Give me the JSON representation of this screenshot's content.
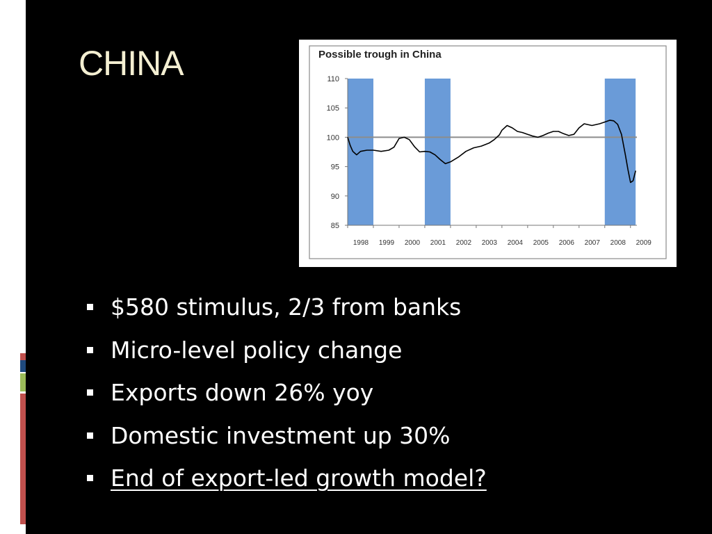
{
  "slide": {
    "title": "CHINA",
    "accent_colors": [
      "#c0504d",
      "#1f497d",
      "#9bbb59",
      "#c0504d"
    ],
    "bullets": [
      {
        "text": "$580 stimulus, 2/3 from banks",
        "underlined": false
      },
      {
        "text": "Micro-level policy change",
        "underlined": false
      },
      {
        "text": "Exports down 26% yoy",
        "underlined": false
      },
      {
        "text": "Domestic investment up 30%",
        "underlined": false
      },
      {
        "text": "End of export-led growth model?",
        "underlined": true
      }
    ]
  },
  "chart_data": {
    "type": "line",
    "title": "Possible trough in China",
    "ylim": [
      85,
      110
    ],
    "yticks": [
      110,
      105,
      100,
      95,
      90,
      85
    ],
    "xticks": [
      "1998",
      "1999",
      "2000",
      "2001",
      "2002",
      "2003",
      "2004",
      "2005",
      "2006",
      "2007",
      "2008",
      "2009"
    ],
    "reference_line": 100,
    "shaded_periods": [
      [
        1998.0,
        1999.0
      ],
      [
        2001.0,
        2002.0
      ],
      [
        2008.0,
        2009.2
      ]
    ],
    "x": [
      1998.0,
      1998.1,
      1998.2,
      1998.35,
      1998.5,
      1998.75,
      1999.0,
      1999.3,
      1999.6,
      1999.8,
      2000.0,
      2000.2,
      2000.4,
      2000.6,
      2000.8,
      2001.0,
      2001.2,
      2001.4,
      2001.6,
      2001.8,
      2002.0,
      2002.3,
      2002.6,
      2002.9,
      2003.2,
      2003.5,
      2003.7,
      2003.9,
      2004.0,
      2004.2,
      2004.4,
      2004.6,
      2004.8,
      2005.0,
      2005.2,
      2005.4,
      2005.6,
      2005.8,
      2006.0,
      2006.2,
      2006.4,
      2006.6,
      2006.8,
      2007.0,
      2007.2,
      2007.5,
      2007.8,
      2008.0,
      2008.2,
      2008.35,
      2008.5,
      2008.65,
      2008.8,
      2008.9,
      2009.0,
      2009.1,
      2009.2
    ],
    "values": [
      100.0,
      98.6,
      97.6,
      97.0,
      97.6,
      97.8,
      97.8,
      97.6,
      97.8,
      98.3,
      99.8,
      100.0,
      99.6,
      98.4,
      97.5,
      97.6,
      97.5,
      97.0,
      96.2,
      95.5,
      95.8,
      96.6,
      97.6,
      98.2,
      98.5,
      99.0,
      99.6,
      100.4,
      101.2,
      102.0,
      101.6,
      101.0,
      100.8,
      100.5,
      100.2,
      100.0,
      100.3,
      100.7,
      101.0,
      101.0,
      100.6,
      100.3,
      100.5,
      101.6,
      102.3,
      102.0,
      102.3,
      102.6,
      102.9,
      102.8,
      102.2,
      100.5,
      97.0,
      94.5,
      92.3,
      92.6,
      94.3
    ],
    "series_color": "#000000",
    "shade_color": "#6a9bd8",
    "reference_color": "#8c8c8c"
  }
}
